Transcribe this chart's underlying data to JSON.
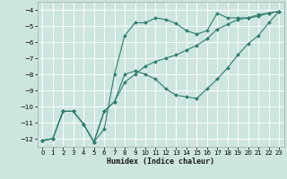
{
  "xlabel": "Humidex (Indice chaleur)",
  "bg_color": "#cce5df",
  "line_color": "#2e7d6e",
  "grid_color": "#ffffff",
  "xlim": [
    -0.5,
    23.5
  ],
  "ylim": [
    -12.5,
    -3.5
  ],
  "xticks": [
    0,
    1,
    2,
    3,
    4,
    5,
    6,
    7,
    8,
    9,
    10,
    11,
    12,
    13,
    14,
    15,
    16,
    17,
    18,
    19,
    20,
    21,
    22,
    23
  ],
  "yticks": [
    -12,
    -11,
    -10,
    -9,
    -8,
    -7,
    -6,
    -5,
    -4
  ],
  "line1_x": [
    0,
    1,
    2,
    3,
    4,
    5,
    6,
    7,
    8,
    9,
    10,
    11,
    12,
    13,
    14,
    15,
    16,
    17,
    18,
    19,
    20,
    21,
    22,
    23
  ],
  "line1_y": [
    -12.1,
    -12.0,
    -10.3,
    -10.3,
    -11.1,
    -12.2,
    -11.4,
    -8.0,
    -5.6,
    -4.8,
    -4.8,
    -4.5,
    -4.6,
    -4.85,
    -5.3,
    -5.5,
    -5.3,
    -4.2,
    -4.5,
    -4.5,
    -4.5,
    -4.3,
    -4.2,
    -4.1
  ],
  "line2_x": [
    0,
    1,
    2,
    3,
    4,
    5,
    6,
    7,
    8,
    9,
    10,
    11,
    12,
    13,
    14,
    15,
    16,
    17,
    18,
    19,
    20,
    21,
    22,
    23
  ],
  "line2_y": [
    -12.1,
    -12.0,
    -10.3,
    -10.3,
    -11.1,
    -12.2,
    -10.3,
    -9.7,
    -8.0,
    -7.8,
    -8.0,
    -8.3,
    -8.9,
    -9.3,
    -9.4,
    -9.5,
    -8.9,
    -8.3,
    -7.6,
    -6.8,
    -6.1,
    -5.6,
    -4.8,
    -4.1
  ],
  "line3_x": [
    0,
    1,
    2,
    3,
    4,
    5,
    6,
    7,
    8,
    9,
    10,
    11,
    12,
    13,
    14,
    15,
    16,
    17,
    18,
    19,
    20,
    21,
    22,
    23
  ],
  "line3_y": [
    -12.1,
    -12.0,
    -10.3,
    -10.3,
    -11.1,
    -12.2,
    -10.3,
    -9.7,
    -8.5,
    -8.0,
    -7.5,
    -7.2,
    -7.0,
    -6.8,
    -6.5,
    -6.2,
    -5.8,
    -5.2,
    -4.9,
    -4.6,
    -4.5,
    -4.4,
    -4.2,
    -4.1
  ]
}
